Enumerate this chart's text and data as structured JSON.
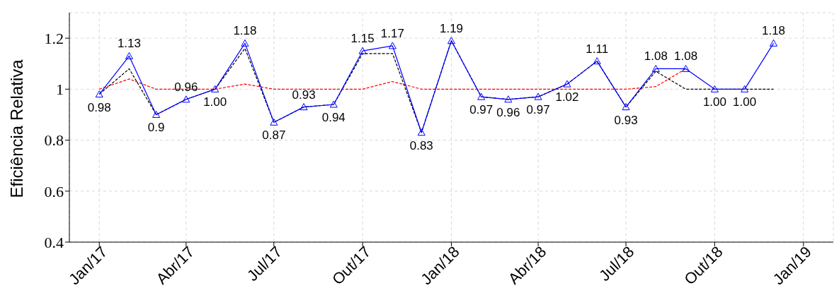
{
  "chart_data": {
    "type": "line",
    "ylabel": "Eficiência Relativa",
    "x": [
      "2017-01",
      "2017-02",
      "2017-03",
      "2017-04",
      "2017-05",
      "2017-06",
      "2017-07",
      "2017-08",
      "2017-09",
      "2017-10",
      "2017-11",
      "2017-12",
      "2018-01",
      "2018-02",
      "2018-03",
      "2018-04",
      "2018-05",
      "2018-06",
      "2018-07",
      "2018-08",
      "2018-09",
      "2018-10",
      "2018-11",
      "2018-12"
    ],
    "series": [
      {
        "color": "#ff0000",
        "line_style": "dashed",
        "marker": "none",
        "values": [
          1.0,
          1.04,
          1.0,
          1.0,
          1.0,
          1.02,
          1.0,
          1.0,
          1.0,
          1.0,
          1.03,
          1.0,
          1.0,
          1.0,
          1.0,
          1.0,
          1.0,
          1.0,
          1.0,
          1.01,
          1.08,
          null,
          null,
          null
        ]
      },
      {
        "color": "#000000",
        "line_style": "dashed",
        "marker": "none",
        "values": [
          0.98,
          1.08,
          0.9,
          0.96,
          1.0,
          1.16,
          0.87,
          0.93,
          0.94,
          1.14,
          1.14,
          0.83,
          1.19,
          0.97,
          0.96,
          0.97,
          1.02,
          1.11,
          0.93,
          1.07,
          1.0,
          1.0,
          1.0,
          1.0
        ]
      },
      {
        "color": "#0000ff",
        "line_style": "solid",
        "marker": "triangle",
        "values": [
          0.98,
          1.13,
          0.9,
          0.96,
          1.0,
          1.18,
          0.87,
          0.93,
          0.94,
          1.15,
          1.17,
          0.83,
          1.19,
          0.97,
          0.96,
          0.97,
          1.02,
          1.11,
          0.93,
          1.08,
          1.08,
          1.0,
          1.0,
          1.18
        ],
        "value_labels": [
          "0.98",
          "1.13",
          "0.9",
          "0.96",
          "1.00",
          "1.18",
          "0.87",
          "0.93",
          "0.94",
          "1.15",
          "1.17",
          "0.83",
          "1.19",
          "0.97",
          "0.96",
          "0.97",
          "1.02",
          "1.11",
          "0.93",
          "1.08",
          "1.08",
          "1.00",
          "1.00",
          "1.18"
        ]
      }
    ],
    "xlim": [
      "2016-12",
      "2019-02"
    ],
    "xticks": [
      {
        "value": "2017-01",
        "label": "Jan/17"
      },
      {
        "value": "2017-04",
        "label": "Abr/17"
      },
      {
        "value": "2017-07",
        "label": "Jul/17"
      },
      {
        "value": "2017-10",
        "label": "Out/17"
      },
      {
        "value": "2018-01",
        "label": "Jan/18"
      },
      {
        "value": "2018-04",
        "label": "Abr/18"
      },
      {
        "value": "2018-07",
        "label": "Jul/18"
      },
      {
        "value": "2018-10",
        "label": "Out/18"
      },
      {
        "value": "2019-01",
        "label": "Jan/19"
      }
    ],
    "ylim": [
      0.4,
      1.3
    ],
    "yticks": [
      0.4,
      0.6,
      0.8,
      1,
      1.2
    ],
    "grid": true
  }
}
